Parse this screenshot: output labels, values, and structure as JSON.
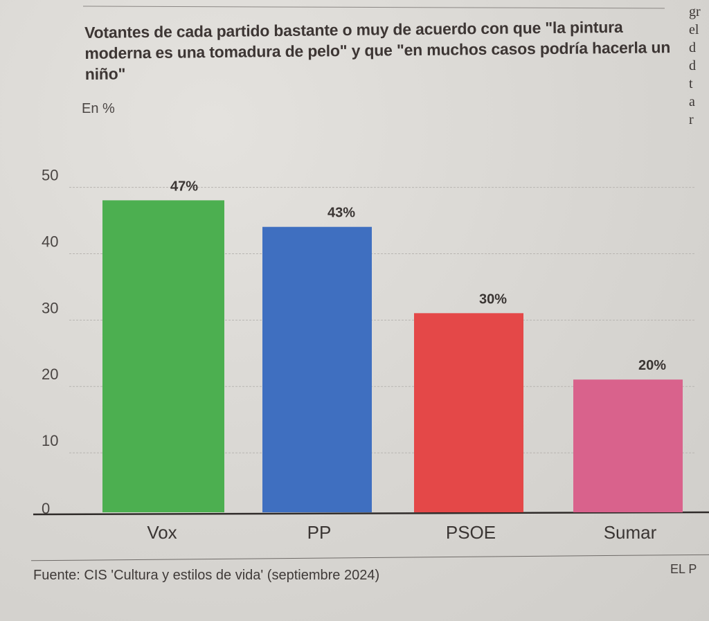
{
  "side_column_text": [
    "gr",
    "el",
    "d",
    "d",
    "t",
    "a",
    "r"
  ],
  "footer": {
    "source": "Fuente: CIS 'Cultura y estilos de vida' (septiembre 2024)",
    "brand": "EL P"
  },
  "chart_data": {
    "type": "bar",
    "title": "Votantes de cada partido bastante o muy de acuerdo con que \"la pintura moderna es una tomadura de pelo\" y que \"en muchos casos podría hacerla un niño\"",
    "subtitle": "En %",
    "xlabel": "",
    "ylabel": "",
    "categories": [
      "Vox",
      "PP",
      "PSOE",
      "Sumar"
    ],
    "values": [
      47,
      43,
      30,
      20
    ],
    "data_labels": [
      "47%",
      "43%",
      "30%",
      "20%"
    ],
    "colors": [
      "#4caf50",
      "#3f6fc0",
      "#e44848",
      "#d9628c"
    ],
    "yticks": [
      0,
      10,
      20,
      30,
      40,
      50
    ],
    "ylim": [
      0,
      50
    ],
    "grid": true,
    "legend": "none"
  }
}
